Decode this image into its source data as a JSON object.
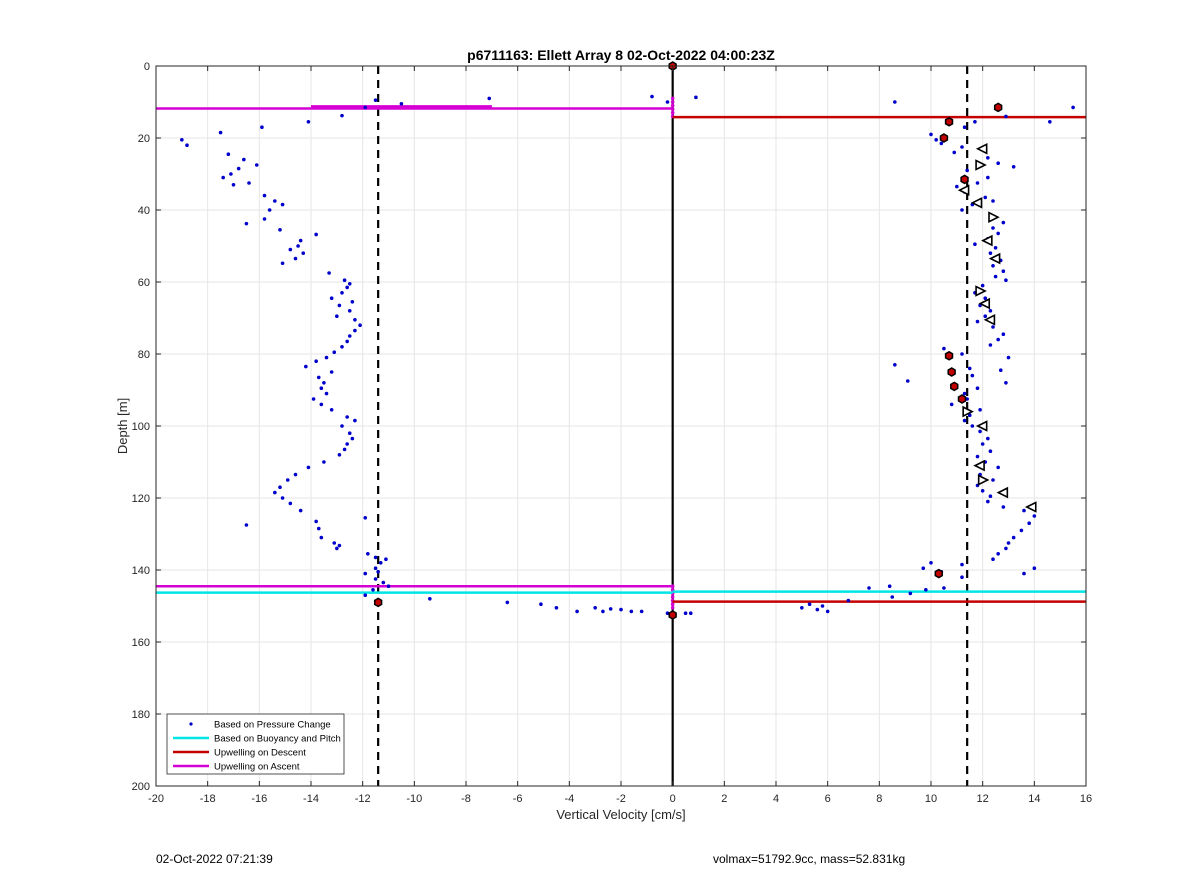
{
  "footer": {
    "timestamp": "02-Oct-2022 07:21:39",
    "info": "volmax=51792.9cc, mass=52.831kg"
  },
  "chart_data": {
    "type": "scatter",
    "title": "p6711163: Ellett Array 8 02-Oct-2022 04:00:23Z",
    "xlabel": "Vertical Velocity [cm/s]",
    "ylabel": "Depth [m]",
    "xlim": [
      -20,
      16
    ],
    "ylim": [
      0,
      200
    ],
    "y_reversed": true,
    "grid": true,
    "legend_position": "bottom-left",
    "xticks": [
      -20,
      -18,
      -16,
      -14,
      -12,
      -10,
      -8,
      -6,
      -4,
      -2,
      0,
      2,
      4,
      6,
      8,
      10,
      12,
      14,
      16
    ],
    "yticks": [
      0,
      20,
      40,
      60,
      80,
      100,
      120,
      140,
      160,
      180,
      200
    ],
    "legend": [
      {
        "label": "Based on Pressure Change",
        "color": "#0000cc",
        "style": "dot"
      },
      {
        "label": "Based on Buoyancy and Pitch",
        "color": "#00e5e5",
        "style": "line"
      },
      {
        "label": "Upwelling on Descent",
        "color": "#c40000",
        "style": "line"
      },
      {
        "label": "Upwelling on Ascent",
        "color": "#d400d4",
        "style": "line"
      }
    ],
    "reference_lines": [
      {
        "x": -11.4,
        "style": "dashed",
        "color": "#000000"
      },
      {
        "x": 11.4,
        "style": "dashed",
        "color": "#000000"
      },
      {
        "x": 0,
        "style": "solid",
        "color": "#000000"
      }
    ],
    "series": [
      {
        "name": "Based on Pressure Change",
        "color": "#0000cc",
        "points": [
          [
            -7.1,
            9
          ],
          [
            -0.8,
            8.5
          ],
          [
            -0.2,
            10
          ],
          [
            0.9,
            8.7
          ],
          [
            -10.5,
            10.5
          ],
          [
            -11.5,
            9.5
          ],
          [
            -11.9,
            11.5
          ],
          [
            -12.8,
            13.8
          ],
          [
            -14.1,
            15.5
          ],
          [
            -15.9,
            17
          ],
          [
            -17.5,
            18.5
          ],
          [
            -19,
            20.5
          ],
          [
            -18.8,
            22
          ],
          [
            -17.2,
            24.5
          ],
          [
            -16.6,
            26
          ],
          [
            -16.1,
            27.5
          ],
          [
            -16.8,
            28.5
          ],
          [
            -17.1,
            30
          ],
          [
            -17.4,
            31
          ],
          [
            -16.4,
            32.5
          ],
          [
            -17,
            33
          ],
          [
            -15.8,
            36
          ],
          [
            -15.4,
            37.5
          ],
          [
            -15.1,
            38.5
          ],
          [
            -15.6,
            40
          ],
          [
            -15.8,
            42.5
          ],
          [
            -16.5,
            43.8
          ],
          [
            -15.2,
            45.5
          ],
          [
            -13.8,
            46.8
          ],
          [
            -14.4,
            48.5
          ],
          [
            -14.5,
            50
          ],
          [
            -14.8,
            51
          ],
          [
            -14.3,
            52
          ],
          [
            -14.6,
            53.5
          ],
          [
            -15.1,
            54.8
          ],
          [
            -13.3,
            57.5
          ],
          [
            -12.7,
            59.5
          ],
          [
            -12.5,
            60.5
          ],
          [
            -12.6,
            61.5
          ],
          [
            -12.8,
            63
          ],
          [
            -13.2,
            64.5
          ],
          [
            -12.4,
            65.5
          ],
          [
            -12.9,
            66.5
          ],
          [
            -12.5,
            68
          ],
          [
            -13.0,
            69.5
          ],
          [
            -12.3,
            70.5
          ],
          [
            -12.1,
            72
          ],
          [
            -12.3,
            73.5
          ],
          [
            -12.5,
            75
          ],
          [
            -12.6,
            76.5
          ],
          [
            -12.8,
            78
          ],
          [
            -13.1,
            79.5
          ],
          [
            -13.4,
            81
          ],
          [
            -13.8,
            82
          ],
          [
            -14.2,
            83.5
          ],
          [
            -13.2,
            85
          ],
          [
            -13.7,
            86.5
          ],
          [
            -13.5,
            88
          ],
          [
            -13.6,
            89.5
          ],
          [
            -13.4,
            91
          ],
          [
            -13.9,
            92.5
          ],
          [
            -13.6,
            94
          ],
          [
            -13.2,
            95.5
          ],
          [
            -12.6,
            97.5
          ],
          [
            -12.3,
            98.5
          ],
          [
            -12.8,
            100
          ],
          [
            -12.5,
            102
          ],
          [
            -12.4,
            103.5
          ],
          [
            -12.6,
            105
          ],
          [
            -12.7,
            106.5
          ],
          [
            -12.9,
            108
          ],
          [
            -13.5,
            110
          ],
          [
            -14.1,
            111.5
          ],
          [
            -14.6,
            113.5
          ],
          [
            -14.9,
            115
          ],
          [
            -15.2,
            117
          ],
          [
            -15.4,
            118.5
          ],
          [
            -15.1,
            120
          ],
          [
            -14.8,
            121.5
          ],
          [
            -14.4,
            123.5
          ],
          [
            -11.9,
            125.5
          ],
          [
            -13.8,
            126.5
          ],
          [
            -16.5,
            127.5
          ],
          [
            -13.7,
            128.5
          ],
          [
            -13.6,
            131
          ],
          [
            -13.1,
            132.5
          ],
          [
            -13.0,
            134
          ],
          [
            -12.9,
            133.2
          ],
          [
            -11.8,
            135.5
          ],
          [
            -11.5,
            136.5
          ],
          [
            -11.1,
            137
          ],
          [
            -11.3,
            138
          ],
          [
            -11.5,
            139.5
          ],
          [
            -11.4,
            140.5
          ],
          [
            -11.9,
            141
          ],
          [
            -11.5,
            142.5
          ],
          [
            -11.2,
            143.5
          ],
          [
            -11.0,
            144.5
          ],
          [
            -11.6,
            145.5
          ],
          [
            -11.9,
            147
          ],
          [
            -9.4,
            148
          ],
          [
            -6.4,
            149
          ],
          [
            -5.1,
            149.5
          ],
          [
            -4.5,
            150.5
          ],
          [
            -3.7,
            151.5
          ],
          [
            -3.0,
            150.5
          ],
          [
            -2.7,
            151.5
          ],
          [
            -2.4,
            150.8
          ],
          [
            -2.0,
            151
          ],
          [
            -1.6,
            151.5
          ],
          [
            -1.2,
            151.5
          ],
          [
            -0.2,
            152
          ],
          [
            0.7,
            152
          ],
          [
            8.6,
            10
          ],
          [
            12.9,
            14
          ],
          [
            15.5,
            11.5
          ],
          [
            14.6,
            15.5
          ],
          [
            11.7,
            15.5
          ],
          [
            11.3,
            17
          ],
          [
            10.0,
            19
          ],
          [
            10.2,
            20.5
          ],
          [
            10.4,
            21.5
          ],
          [
            11.2,
            22.5
          ],
          [
            10.9,
            24
          ],
          [
            12.2,
            25.5
          ],
          [
            12.6,
            27
          ],
          [
            13.2,
            28
          ],
          [
            11.4,
            29
          ],
          [
            12.2,
            31
          ],
          [
            11.8,
            32.5
          ],
          [
            11.0,
            33.5
          ],
          [
            11.3,
            35
          ],
          [
            12.1,
            36.5
          ],
          [
            12.4,
            37.5
          ],
          [
            11.6,
            38.5
          ],
          [
            11.2,
            40
          ],
          [
            12.3,
            41.5
          ],
          [
            12.8,
            43.5
          ],
          [
            12.4,
            45
          ],
          [
            12.6,
            46.5
          ],
          [
            12.2,
            48
          ],
          [
            11.7,
            49.5
          ],
          [
            12.5,
            50.5
          ],
          [
            12.3,
            52
          ],
          [
            12.7,
            54
          ],
          [
            12.4,
            55.5
          ],
          [
            12.8,
            57
          ],
          [
            12.5,
            58.5
          ],
          [
            12.9,
            59.5
          ],
          [
            12.0,
            61
          ],
          [
            11.7,
            63
          ],
          [
            12.1,
            64.5
          ],
          [
            11.9,
            66.5
          ],
          [
            12.3,
            68
          ],
          [
            12.1,
            69.5
          ],
          [
            11.8,
            71
          ],
          [
            12.4,
            72.5
          ],
          [
            12.8,
            74.5
          ],
          [
            12.6,
            76
          ],
          [
            12.3,
            77.5
          ],
          [
            10.5,
            78.5
          ],
          [
            11.2,
            80
          ],
          [
            13.0,
            81
          ],
          [
            8.6,
            83
          ],
          [
            11.5,
            84
          ],
          [
            12.7,
            84.5
          ],
          [
            11.6,
            86
          ],
          [
            9.1,
            87.5
          ],
          [
            12.9,
            88
          ],
          [
            11.8,
            89.5
          ],
          [
            11.3,
            91
          ],
          [
            11.4,
            92.5
          ],
          [
            10.8,
            94
          ],
          [
            11.9,
            95.5
          ],
          [
            11.5,
            97
          ],
          [
            11.3,
            98.5
          ],
          [
            11.6,
            100
          ],
          [
            11.9,
            101.5
          ],
          [
            12.2,
            103.5
          ],
          [
            12.0,
            105
          ],
          [
            12.3,
            107
          ],
          [
            11.8,
            108.5
          ],
          [
            12.1,
            110
          ],
          [
            12.6,
            111.5
          ],
          [
            11.9,
            113.5
          ],
          [
            12.4,
            115
          ],
          [
            11.8,
            116.5
          ],
          [
            12.0,
            118
          ],
          [
            12.3,
            119.5
          ],
          [
            12.2,
            121
          ],
          [
            12.8,
            122.5
          ],
          [
            13.6,
            123.5
          ],
          [
            14.0,
            125
          ],
          [
            13.8,
            127
          ],
          [
            13.5,
            129
          ],
          [
            13.2,
            131
          ],
          [
            13.0,
            132.5
          ],
          [
            12.9,
            134
          ],
          [
            12.6,
            135.5
          ],
          [
            12.4,
            137
          ],
          [
            11.2,
            138.5
          ],
          [
            10.0,
            138
          ],
          [
            9.7,
            139.5
          ],
          [
            14.0,
            139.5
          ],
          [
            13.6,
            141
          ],
          [
            10.4,
            140.5
          ],
          [
            11.2,
            142
          ],
          [
            8.4,
            144.5
          ],
          [
            7.6,
            145
          ],
          [
            10.5,
            145
          ],
          [
            9.8,
            145.5
          ],
          [
            9.2,
            146.5
          ],
          [
            8.5,
            147.5
          ],
          [
            6.8,
            148.5
          ],
          [
            5.3,
            149.5
          ],
          [
            5.8,
            150
          ],
          [
            5.0,
            150.5
          ],
          [
            5.6,
            151
          ],
          [
            6.0,
            151.5
          ],
          [
            0.5,
            152
          ]
        ]
      },
      {
        "name": "Upwelling on Descent markers",
        "color": "#c40000",
        "points": [
          [
            0,
            0
          ],
          [
            12.6,
            11.5
          ],
          [
            10.7,
            15.5
          ],
          [
            10.5,
            20
          ],
          [
            11.3,
            31.5
          ],
          [
            10.7,
            80.5
          ],
          [
            10.8,
            85
          ],
          [
            10.9,
            89
          ],
          [
            11.2,
            92.5
          ],
          [
            10.3,
            141
          ],
          [
            -11.4,
            149
          ],
          [
            0,
            152.5
          ]
        ]
      },
      {
        "name": "Upwelling on Ascent markers",
        "color": "#000000",
        "points": [
          [
            12.0,
            23
          ],
          [
            11.9,
            27.5
          ],
          [
            11.3,
            34.5
          ],
          [
            11.8,
            38
          ],
          [
            12.4,
            42
          ],
          [
            12.2,
            48.5
          ],
          [
            12.5,
            53.5
          ],
          [
            11.9,
            62.5
          ],
          [
            12.1,
            66
          ],
          [
            12.3,
            70.5
          ],
          [
            11.4,
            96
          ],
          [
            12.0,
            100
          ],
          [
            11.9,
            111
          ],
          [
            12.0,
            115
          ],
          [
            12.8,
            118.5
          ],
          [
            13.9,
            122.5
          ]
        ]
      }
    ],
    "segments": [
      {
        "name": "Upwelling on Ascent",
        "color": "#d400d4",
        "y": 11.8,
        "x": [
          -20,
          0
        ]
      },
      {
        "name": "Upwelling on Ascent",
        "color": "#d400d4",
        "y": 11.2,
        "x": [
          -14,
          -7
        ]
      },
      {
        "name": "Upwelling on Descent",
        "color": "#c40000",
        "y": 14.2,
        "x": [
          0,
          16
        ]
      },
      {
        "name": "Upwelling on Ascent",
        "color": "#d400d4",
        "y": 144.5,
        "x": [
          -20,
          0
        ]
      },
      {
        "name": "Based on Buoyancy and Pitch",
        "color": "#00e5e5",
        "y": 146.3,
        "x": [
          -20,
          0
        ]
      },
      {
        "name": "Based on Buoyancy and Pitch",
        "color": "#00e5e5",
        "y": 146.0,
        "x": [
          0,
          16
        ]
      },
      {
        "name": "Upwelling on Descent",
        "color": "#c40000",
        "y": 148.8,
        "x": [
          0,
          16
        ]
      }
    ],
    "zero_line_markers": {
      "color": "#d400d4",
      "depths": [
        9,
        10,
        11,
        12,
        13,
        14,
        144.5,
        145.5,
        146.5,
        147.5,
        148.5,
        149.5,
        150.5
      ]
    }
  }
}
